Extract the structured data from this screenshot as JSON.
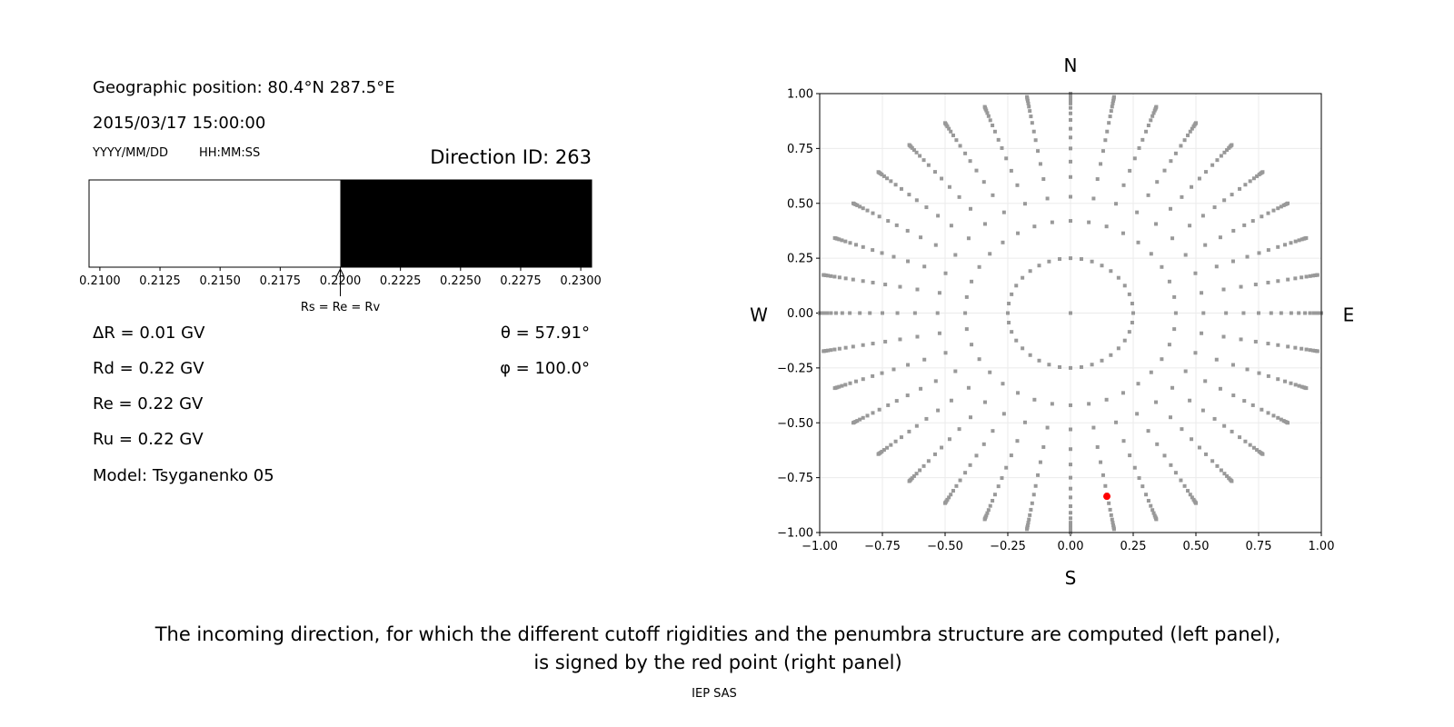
{
  "left_panel": {
    "geo_position": "Geographic position: 80.4°N 287.5°E",
    "datetime": "2015/03/17 15:00:00",
    "date_format": "YYYY/MM/DD",
    "time_format": "HH:MM:SS",
    "direction_id": "Direction ID: 263",
    "delta_r": "ΔR = 0.01 GV",
    "rd": "Rd = 0.22 GV",
    "re": "Re = 0.22 GV",
    "ru": "Ru = 0.22 GV",
    "model": "Model: Tsyganenko 05",
    "theta": "θ = 57.91°",
    "phi": "φ = 100.0°"
  },
  "chart_data": [
    {
      "type": "bar",
      "title": "",
      "xlim": [
        0.20955,
        0.23045
      ],
      "xticks": [
        "0.2100",
        "0.2125",
        "0.2150",
        "0.2175",
        "0.2200",
        "0.2225",
        "0.2250",
        "0.2275",
        "0.2300"
      ],
      "segments": [
        {
          "from": 0.20955,
          "to": 0.22,
          "color": "#ffffff"
        },
        {
          "from": 0.22,
          "to": 0.23045,
          "color": "#000000"
        }
      ],
      "annotation": {
        "text": "Rs = Re = Rv",
        "x": 0.22
      }
    },
    {
      "type": "scatter",
      "xlim": [
        -1,
        1
      ],
      "ylim": [
        -1,
        1
      ],
      "xticks": [
        "−1.00",
        "−0.75",
        "−0.50",
        "−0.25",
        "0.00",
        "0.25",
        "0.50",
        "0.75",
        "1.00"
      ],
      "yticks": [
        "−1.00",
        "−0.75",
        "−0.50",
        "−0.25",
        "0.00",
        "0.25",
        "0.50",
        "0.75",
        "1.00"
      ],
      "grid": true,
      "compass": {
        "north": "N",
        "south": "S",
        "west": "W",
        "east": "E"
      },
      "point_color": "#999999",
      "highlight_color": "#ff0000",
      "azimuth_step_deg": 10,
      "radii": [
        0.25,
        0.42,
        0.53,
        0.62,
        0.69,
        0.75,
        0.8,
        0.84,
        0.88,
        0.91,
        0.935,
        0.955,
        0.97,
        0.982,
        0.99,
        0.996,
        1.0
      ],
      "center_point": [
        0,
        0
      ],
      "highlight_point": [
        0.145,
        -0.835
      ]
    }
  ],
  "caption": {
    "line1": "The incoming direction, for which the different cutoff rigidities and the penumbra structure are computed (left panel),",
    "line2": "is signed by the red point (right panel)"
  },
  "footer": "IEP SAS"
}
